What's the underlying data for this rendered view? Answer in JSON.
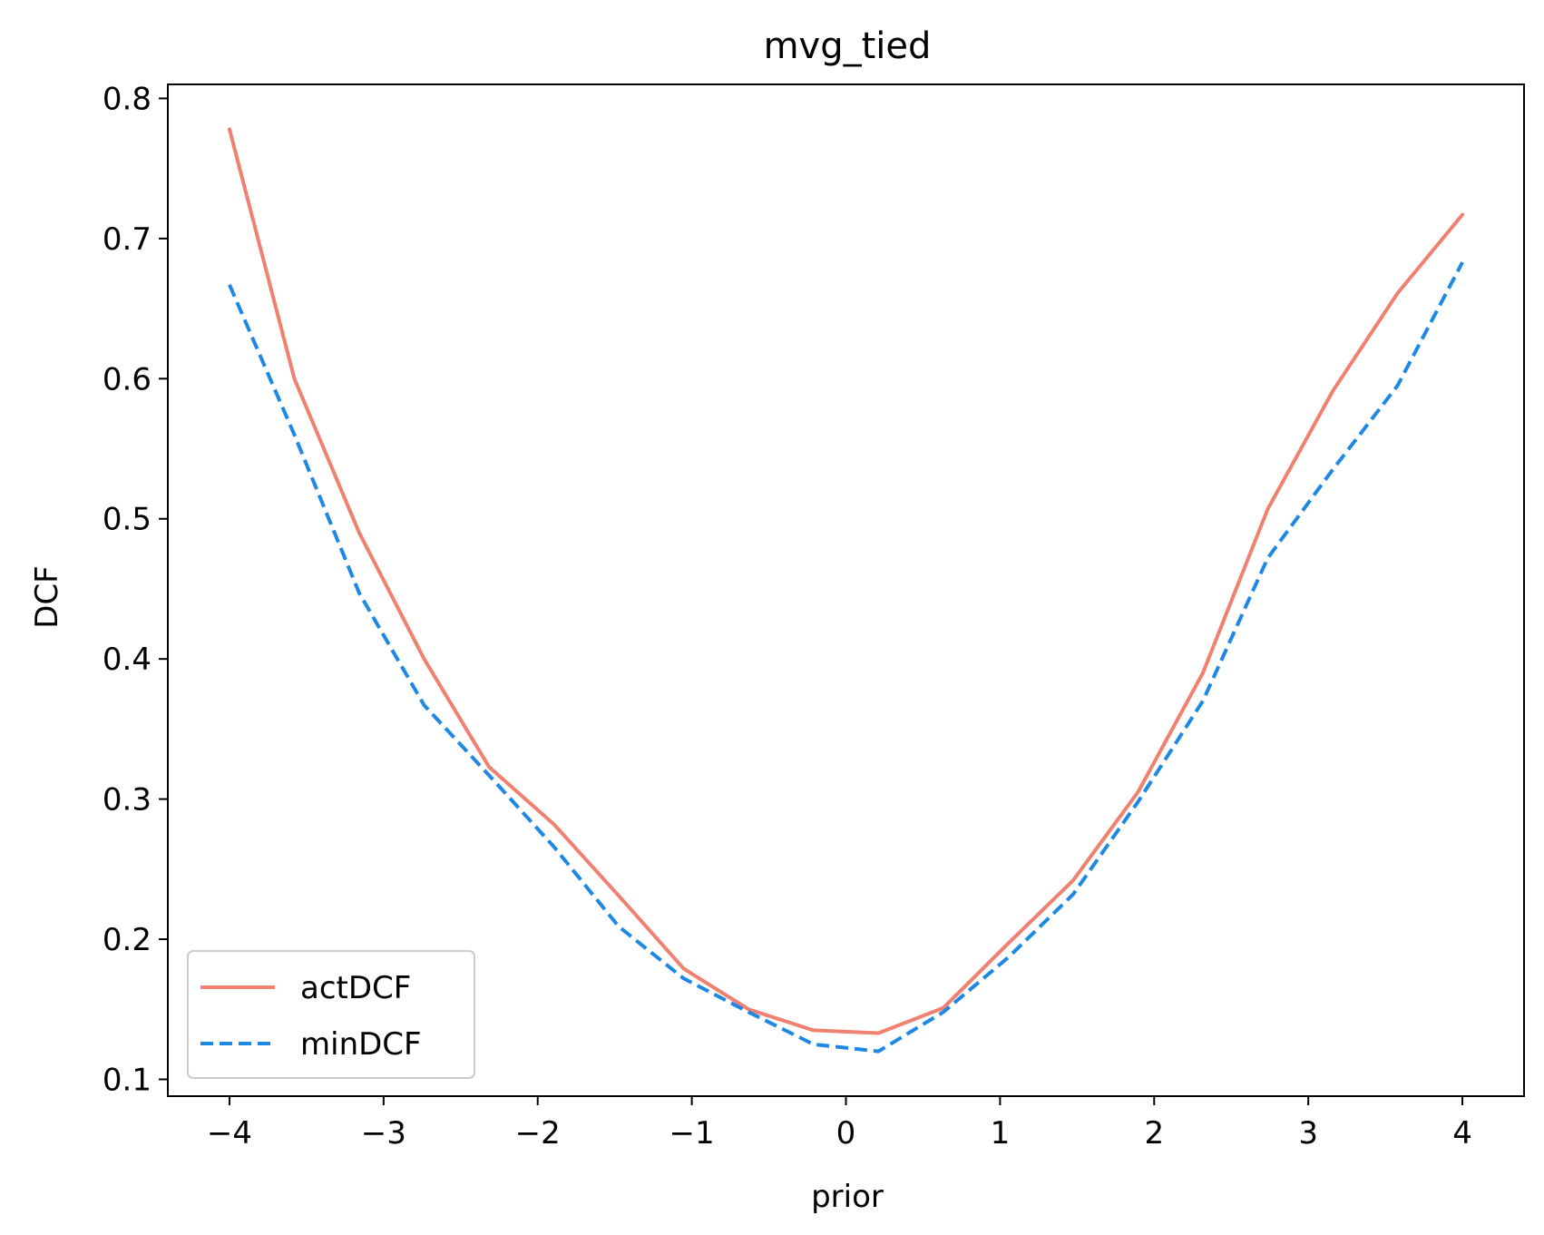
{
  "chart_data": {
    "type": "line",
    "title": "mvg_tied",
    "xlabel": "prior",
    "ylabel": "DCF",
    "xlim": [
      -4.4,
      4.4
    ],
    "ylim": [
      0.088,
      0.81
    ],
    "x_ticks": [
      -4,
      -3,
      -2,
      -1,
      0,
      1,
      2,
      3,
      4
    ],
    "x_tick_labels": [
      "−4",
      "−3",
      "−2",
      "−1",
      "0",
      "1",
      "2",
      "3",
      "4"
    ],
    "y_ticks": [
      0.1,
      0.2,
      0.3,
      0.4,
      0.5,
      0.6,
      0.7,
      0.8
    ],
    "y_tick_labels": [
      "0.1",
      "0.2",
      "0.3",
      "0.4",
      "0.5",
      "0.6",
      "0.7",
      "0.8"
    ],
    "grid": false,
    "legend_position": "lower-left",
    "x": [
      -4.0,
      -3.579,
      -3.158,
      -2.737,
      -2.316,
      -1.895,
      -1.474,
      -1.053,
      -0.632,
      -0.211,
      0.211,
      0.632,
      1.053,
      1.474,
      1.895,
      2.316,
      2.737,
      3.158,
      3.579,
      4.0
    ],
    "series": [
      {
        "name": "actDCF",
        "color": "#f08070",
        "style": "solid",
        "values": [
          0.778,
          0.6,
          0.49,
          0.4,
          0.323,
          0.282,
          0.231,
          0.179,
          0.15,
          0.135,
          0.133,
          0.151,
          0.197,
          0.242,
          0.305,
          0.39,
          0.507,
          0.591,
          0.661,
          0.717
        ]
      },
      {
        "name": "minDCF",
        "color": "#1e88e5",
        "style": "dashed",
        "values": [
          0.667,
          0.56,
          0.447,
          0.367,
          0.317,
          0.266,
          0.209,
          0.172,
          0.148,
          0.125,
          0.12,
          0.148,
          0.187,
          0.232,
          0.298,
          0.37,
          0.472,
          0.535,
          0.595,
          0.683
        ]
      }
    ]
  }
}
